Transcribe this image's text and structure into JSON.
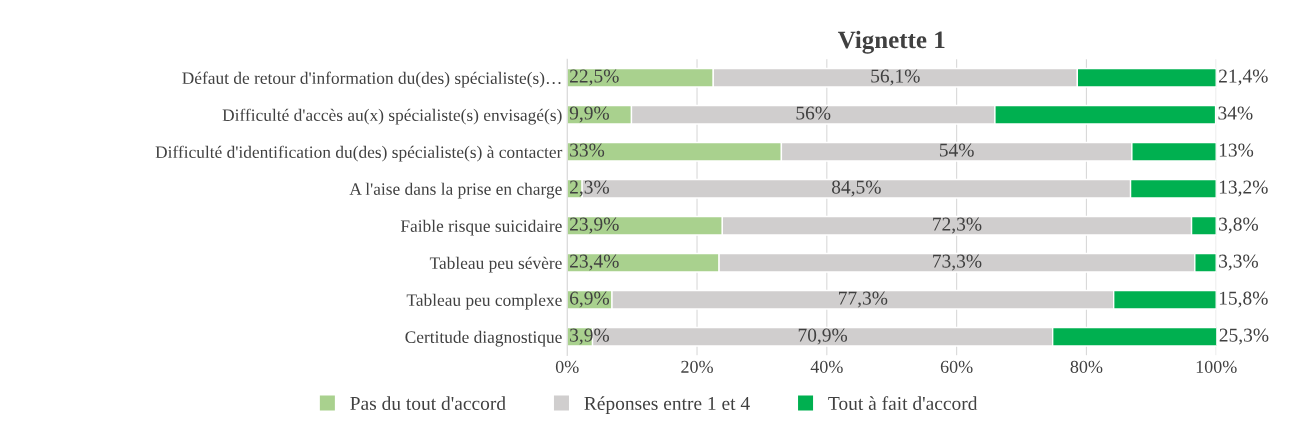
{
  "chart_data": {
    "type": "bar",
    "orientation": "horizontal",
    "stacked": true,
    "title": "Vignette 1",
    "categories": [
      "Défaut de retour d'information du(des) spécialiste(s)…",
      "Difficulté d'accès au(x) spécialiste(s) envisagé(s)",
      "Difficulté d'identification du(des) spécialiste(s) à contacter",
      "A l'aise dans la prise en charge",
      "Faible risque suicidaire",
      "Tableau peu sévère",
      "Tableau peu complexe",
      "Certitude diagnostique"
    ],
    "series": [
      {
        "name": "Pas du tout d'accord",
        "color": "#a9d18e",
        "values": [
          22.5,
          9.9,
          33,
          2.3,
          23.9,
          23.4,
          6.9,
          3.9
        ],
        "value_labels": [
          "22,5%",
          "9,9%",
          "33%",
          "2,3%",
          "23,9%",
          "23,4%",
          "6,9%",
          "3,9%"
        ]
      },
      {
        "name": "Réponses entre 1 et 4",
        "color": "#d0cece",
        "values": [
          56.1,
          56,
          54,
          84.5,
          72.3,
          73.3,
          77.3,
          70.9
        ],
        "value_labels": [
          "56,1%",
          "56%",
          "54%",
          "84,5%",
          "72,3%",
          "73,3%",
          "77,3%",
          "70,9%"
        ]
      },
      {
        "name": "Tout à fait d'accord",
        "color": "#00b050",
        "values": [
          21.4,
          34,
          13,
          13.2,
          3.8,
          3.3,
          15.8,
          25.3
        ],
        "value_labels": [
          "21,4%",
          "34%",
          "13%",
          "13,2%",
          "3,8%",
          "3,3%",
          "15,8%",
          "25,3%"
        ]
      }
    ],
    "xlim": [
      0,
      100
    ],
    "xticks": [
      {
        "value": 0,
        "label": "0%"
      },
      {
        "value": 20,
        "label": "20%"
      },
      {
        "value": 40,
        "label": "40%"
      },
      {
        "value": 60,
        "label": "60%"
      },
      {
        "value": 80,
        "label": "80%"
      },
      {
        "value": 100,
        "label": "100%"
      }
    ],
    "grid": "x",
    "legend": "bottom"
  }
}
